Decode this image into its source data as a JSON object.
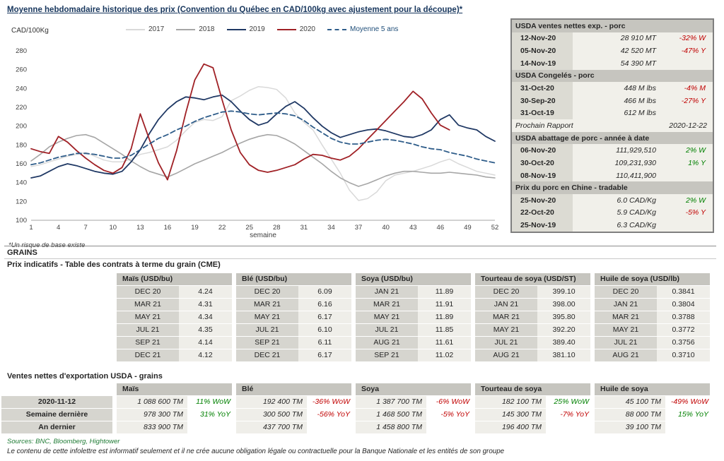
{
  "title": "Moyenne hebdomadaire historique des prix (Convention du Québec en CAD/100kg avec ajustement pour la découpe)*",
  "footnote": "*Un risque de base existe",
  "colors": {
    "negative": "#c00000",
    "positive": "#008000",
    "navy": "#17365d",
    "panel_bg": "#f1f0ea",
    "header_bg": "#c6c5bf"
  },
  "chart_data": {
    "type": "line",
    "title": "Moyenne hebdomadaire historique des prix (Convention du Québec en CAD/100kg avec ajustement pour la découpe)",
    "ylabel": "CAD/100Kg",
    "xlabel": "semaine",
    "xlim": [
      1,
      52
    ],
    "ylim": [
      100,
      280
    ],
    "yticks": [
      100,
      120,
      140,
      160,
      180,
      200,
      220,
      240,
      260,
      280
    ],
    "xticks": [
      1,
      4,
      7,
      10,
      13,
      16,
      19,
      22,
      25,
      28,
      31,
      34,
      37,
      40,
      43,
      46,
      49,
      52
    ],
    "grid": false,
    "legend_position": "top",
    "series": [
      {
        "name": "2017",
        "color": "#d9d9d9",
        "width": 1.5,
        "dash": false,
        "values": [
          157,
          159,
          162,
          165,
          168,
          170,
          172,
          168,
          164,
          162,
          162,
          165,
          170,
          172,
          175,
          178,
          185,
          195,
          204,
          207,
          206,
          210,
          227,
          232,
          238,
          242,
          241,
          239,
          230,
          214,
          204,
          196,
          180,
          165,
          150,
          132,
          121,
          123,
          130,
          142,
          148,
          150,
          152,
          155,
          158,
          162,
          165,
          160,
          156,
          152,
          150,
          148
        ]
      },
      {
        "name": "2018",
        "color": "#a6a6a6",
        "width": 1.6,
        "dash": false,
        "values": [
          163,
          170,
          178,
          183,
          187,
          190,
          191,
          188,
          182,
          176,
          170,
          163,
          157,
          152,
          149,
          146,
          150,
          155,
          160,
          164,
          168,
          172,
          177,
          182,
          186,
          189,
          191,
          190,
          186,
          181,
          174,
          167,
          160,
          152,
          145,
          140,
          136,
          139,
          143,
          147,
          150,
          152,
          152,
          151,
          150,
          150,
          151,
          150,
          149,
          148,
          146,
          145
        ]
      },
      {
        "name": "2019",
        "color": "#1f3864",
        "width": 1.8,
        "dash": false,
        "values": [
          145,
          147,
          152,
          157,
          160,
          158,
          155,
          152,
          150,
          149,
          152,
          162,
          175,
          192,
          207,
          218,
          226,
          231,
          230,
          228,
          231,
          233,
          226,
          216,
          207,
          201,
          204,
          213,
          221,
          226,
          219,
          209,
          200,
          193,
          188,
          191,
          194,
          196,
          197,
          195,
          192,
          189,
          188,
          191,
          196,
          207,
          212,
          201,
          198,
          196,
          189,
          184
        ]
      },
      {
        "name": "2020",
        "color": "#a02126",
        "width": 1.8,
        "dash": false,
        "values": [
          176,
          173,
          171,
          189,
          183,
          174,
          166,
          159,
          153,
          150,
          156,
          176,
          213,
          186,
          161,
          143,
          174,
          214,
          249,
          266,
          262,
          228,
          196,
          172,
          159,
          153,
          151,
          153,
          156,
          159,
          165,
          170,
          169,
          166,
          164,
          168,
          176,
          186,
          196,
          206,
          216,
          226,
          237,
          229,
          214,
          201,
          196
        ]
      },
      {
        "name": "Moyenne 5 ans",
        "color": "#2f5d8a",
        "width": 1.8,
        "dash": true,
        "label_color": "#1f4e79",
        "values": [
          159,
          161,
          164,
          167,
          169,
          171,
          171,
          170,
          168,
          166,
          166,
          169,
          175,
          181,
          187,
          191,
          196,
          200,
          205,
          209,
          212,
          215,
          216,
          215,
          213,
          212,
          213,
          214,
          213,
          211,
          206,
          199,
          193,
          187,
          183,
          181,
          181,
          183,
          185,
          186,
          185,
          183,
          181,
          178,
          176,
          175,
          172,
          170,
          168,
          165,
          163,
          161
        ]
      }
    ]
  },
  "side_panel": {
    "rows": [
      {
        "type": "header",
        "text": "USDA ventes nettes exp. - porc"
      },
      {
        "type": "data",
        "date": "12-Nov-20",
        "value": "28 910  MT",
        "pct": "-32% W",
        "pct_color": "red"
      },
      {
        "type": "data",
        "date": "05-Nov-20",
        "value": "42 520  MT",
        "pct": "-47% Y",
        "pct_color": "red"
      },
      {
        "type": "data",
        "date": "14-Nov-19",
        "value": "54 390  MT",
        "pct": ""
      },
      {
        "type": "header",
        "text": "USDA Congelés - porc"
      },
      {
        "type": "data",
        "date": "31-Oct-20",
        "value": "448 M lbs",
        "pct": "-4% M",
        "pct_color": "red"
      },
      {
        "type": "data",
        "date": "30-Sep-20",
        "value": "466 M lbs",
        "pct": "-27% Y",
        "pct_color": "red"
      },
      {
        "type": "data",
        "date": "31-Oct-19",
        "value": "612 M lbs",
        "pct": ""
      },
      {
        "type": "note",
        "label": "Prochain Rapport",
        "value": "2020-12-22"
      },
      {
        "type": "header",
        "text": "USDA abattage de porc - année à date"
      },
      {
        "type": "data",
        "date": "06-Nov-20",
        "value": "111,929,510",
        "pct": "2% W",
        "pct_color": "green"
      },
      {
        "type": "data",
        "date": "30-Oct-20",
        "value": "109,231,930",
        "pct": "1% Y",
        "pct_color": "green"
      },
      {
        "type": "data",
        "date": "08-Nov-19",
        "value": "110,411,900",
        "pct": ""
      },
      {
        "type": "header",
        "text": "Prix du porc en Chine - tradable"
      },
      {
        "type": "data",
        "date": "25-Nov-20",
        "value": "6.0 CAD/Kg",
        "pct": "2% W",
        "pct_color": "green"
      },
      {
        "type": "data",
        "date": "22-Oct-20",
        "value": "5.9 CAD/Kg",
        "pct": "-5% Y",
        "pct_color": "red"
      },
      {
        "type": "data",
        "date": "25-Nov-19",
        "value": "6.3 CAD/Kg",
        "pct": ""
      }
    ]
  },
  "grains": {
    "section_title": "GRAINS",
    "futures_title": "Prix indicatifs - Table des contrats à terme du grain (CME)",
    "futures": [
      {
        "header": "Maïs (USD/bu)",
        "rows": [
          [
            "DEC 20",
            "4.24"
          ],
          [
            "MAR 21",
            "4.31"
          ],
          [
            "MAY 21",
            "4.34"
          ],
          [
            "JUL 21",
            "4.35"
          ],
          [
            "SEP 21",
            "4.14"
          ],
          [
            "DEC 21",
            "4.12"
          ]
        ]
      },
      {
        "header": "Blé (USD/bu)",
        "rows": [
          [
            "DEC 20",
            "6.09"
          ],
          [
            "MAR 21",
            "6.16"
          ],
          [
            "MAY 21",
            "6.17"
          ],
          [
            "JUL 21",
            "6.10"
          ],
          [
            "SEP 21",
            "6.11"
          ],
          [
            "DEC 21",
            "6.17"
          ]
        ]
      },
      {
        "header": "Soya (USD/bu)",
        "rows": [
          [
            "JAN 21",
            "11.89"
          ],
          [
            "MAR 21",
            "11.91"
          ],
          [
            "MAY 21",
            "11.89"
          ],
          [
            "JUL 21",
            "11.85"
          ],
          [
            "AUG 21",
            "11.61"
          ],
          [
            "SEP 21",
            "11.02"
          ]
        ]
      },
      {
        "header": "Tourteau de soya (USD/ST)",
        "rows": [
          [
            "DEC 20",
            "399.10"
          ],
          [
            "JAN 21",
            "398.00"
          ],
          [
            "MAR 21",
            "395.80"
          ],
          [
            "MAY 21",
            "392.20"
          ],
          [
            "JUL 21",
            "389.40"
          ],
          [
            "AUG 21",
            "381.10"
          ]
        ]
      },
      {
        "header": "Huile de soya (USD/lb)",
        "rows": [
          [
            "DEC 20",
            "0.3841"
          ],
          [
            "JAN 21",
            "0.3804"
          ],
          [
            "MAR 21",
            "0.3788"
          ],
          [
            "MAY 21",
            "0.3772"
          ],
          [
            "JUL 21",
            "0.3756"
          ],
          [
            "AUG 21",
            "0.3710"
          ]
        ]
      }
    ],
    "exports_title": "Ventes nettes d'exportation USDA - grains",
    "exports": {
      "columns": [
        "Maïs",
        "Blé",
        "Soya",
        "Tourteau de soya",
        "Huile de soya"
      ],
      "rows": [
        {
          "label": "2020-11-12",
          "cells": [
            {
              "value": "1 088 600 TM",
              "pct": "11% WoW",
              "pct_color": "green"
            },
            {
              "value": "192 400 TM",
              "pct": "-36% WoW",
              "pct_color": "red"
            },
            {
              "value": "1 387 700 TM",
              "pct": "-6% WoW",
              "pct_color": "red"
            },
            {
              "value": "182 100 TM",
              "pct": "25% WoW",
              "pct_color": "green"
            },
            {
              "value": "45 100 TM",
              "pct": "-49% WoW",
              "pct_color": "red"
            }
          ]
        },
        {
          "label": "Semaine dernière",
          "cells": [
            {
              "value": "978 300 TM",
              "pct": "31% YoY",
              "pct_color": "green"
            },
            {
              "value": "300 500 TM",
              "pct": "-56% YoY",
              "pct_color": "red"
            },
            {
              "value": "1 468 500 TM",
              "pct": "-5% YoY",
              "pct_color": "red"
            },
            {
              "value": "145 300 TM",
              "pct": "-7% YoY",
              "pct_color": "red"
            },
            {
              "value": "88 000 TM",
              "pct": "15% YoY",
              "pct_color": "green"
            }
          ]
        },
        {
          "label": "An dernier",
          "cells": [
            {
              "value": "833 900 TM",
              "pct": ""
            },
            {
              "value": "437 700 TM",
              "pct": ""
            },
            {
              "value": "1 458 800 TM",
              "pct": ""
            },
            {
              "value": "196 400 TM",
              "pct": ""
            },
            {
              "value": "39 100 TM",
              "pct": ""
            }
          ]
        }
      ]
    }
  },
  "footer": {
    "sources": "Sources: BNC, Bloomberg, Hightower",
    "disclaimer": "Le contenu de cette infolettre est informatif seulement et il ne crée aucune obligation légale ou contractuelle pour la Banque Nationale et les entités de son groupe"
  }
}
